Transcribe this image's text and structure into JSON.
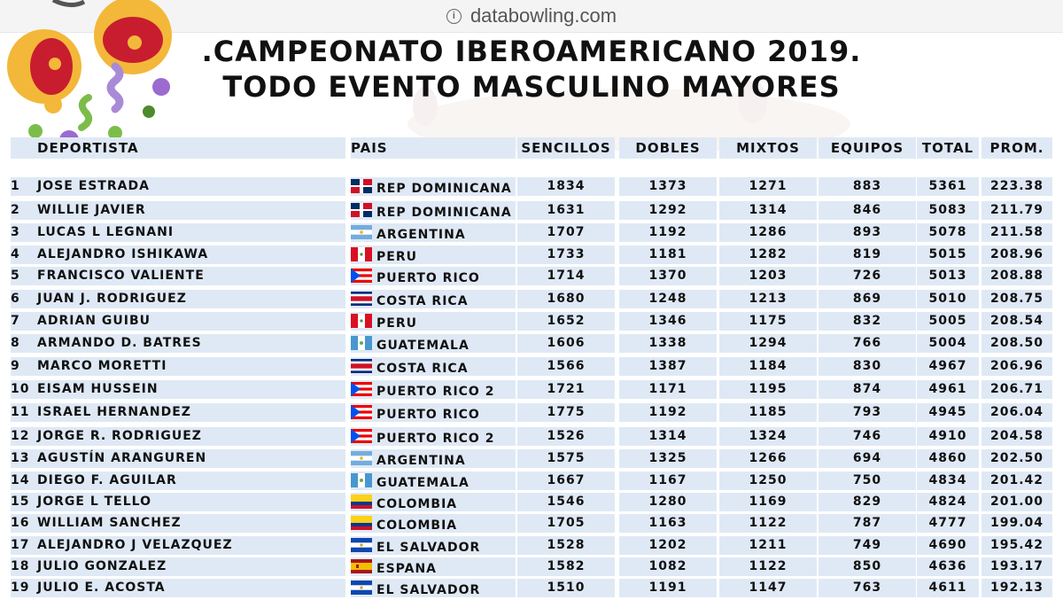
{
  "browser": {
    "url": "databowling.com"
  },
  "title": {
    "line1": ".CAMPEONATO IBEROAMERICANO 2019.",
    "line2": "TODO EVENTO MASCULINO MAYORES"
  },
  "table": {
    "headers": {
      "deportista": "DEPORTISTA",
      "pais": "PAIS",
      "sencillos": "SENCILLOS",
      "dobles": "DOBLES",
      "mixtos": "MIXTOS",
      "equipos": "EQUIPOS",
      "total": "TOTAL",
      "prom": "PROM."
    },
    "rows": [
      {
        "rank": "1",
        "name": "JOSE ESTRADA",
        "flag": "dom",
        "country": "REP DOMINICANA",
        "sencillos": "1834",
        "dobles": "1373",
        "mixtos": "1271",
        "equipos": "883",
        "total": "5361",
        "prom": "223.38"
      },
      {
        "rank": "2",
        "name": "WILLIE JAVIER",
        "flag": "dom",
        "country": "REP DOMINICANA",
        "sencillos": "1631",
        "dobles": "1292",
        "mixtos": "1314",
        "equipos": "846",
        "total": "5083",
        "prom": "211.79"
      },
      {
        "rank": "3",
        "name": "LUCAS L LEGNANI",
        "flag": "arg",
        "country": "ARGENTINA",
        "sencillos": "1707",
        "dobles": "1192",
        "mixtos": "1286",
        "equipos": "893",
        "total": "5078",
        "prom": "211.58"
      },
      {
        "rank": "4",
        "name": "ALEJANDRO ISHIKAWA",
        "flag": "per",
        "country": "PERU",
        "sencillos": "1733",
        "dobles": "1181",
        "mixtos": "1282",
        "equipos": "819",
        "total": "5015",
        "prom": "208.96"
      },
      {
        "rank": "5",
        "name": "FRANCISCO VALIENTE",
        "flag": "pri",
        "country": "PUERTO RICO",
        "sencillos": "1714",
        "dobles": "1370",
        "mixtos": "1203",
        "equipos": "726",
        "total": "5013",
        "prom": "208.88"
      },
      {
        "rank": "6",
        "name": "JUAN J. RODRIGUEZ",
        "flag": "cri",
        "country": "COSTA RICA",
        "sencillos": "1680",
        "dobles": "1248",
        "mixtos": "1213",
        "equipos": "869",
        "total": "5010",
        "prom": "208.75"
      },
      {
        "rank": "7",
        "name": "ADRIAN GUIBU",
        "flag": "per",
        "country": "PERU",
        "sencillos": "1652",
        "dobles": "1346",
        "mixtos": "1175",
        "equipos": "832",
        "total": "5005",
        "prom": "208.54"
      },
      {
        "rank": "8",
        "name": "ARMANDO D. BATRES",
        "flag": "gtm",
        "country": "GUATEMALA",
        "sencillos": "1606",
        "dobles": "1338",
        "mixtos": "1294",
        "equipos": "766",
        "total": "5004",
        "prom": "208.50"
      },
      {
        "rank": "9",
        "name": "MARCO MORETTI",
        "flag": "cri",
        "country": "COSTA RICA",
        "sencillos": "1566",
        "dobles": "1387",
        "mixtos": "1184",
        "equipos": "830",
        "total": "4967",
        "prom": "206.96"
      },
      {
        "rank": "10",
        "name": "EISAM HUSSEIN",
        "flag": "pri",
        "country": "PUERTO RICO 2",
        "sencillos": "1721",
        "dobles": "1171",
        "mixtos": "1195",
        "equipos": "874",
        "total": "4961",
        "prom": "206.71"
      },
      {
        "rank": "11",
        "name": "ISRAEL HERNANDEZ",
        "flag": "pri",
        "country": "PUERTO RICO",
        "sencillos": "1775",
        "dobles": "1192",
        "mixtos": "1185",
        "equipos": "793",
        "total": "4945",
        "prom": "206.04"
      },
      {
        "rank": "12",
        "name": "JORGE R. RODRIGUEZ",
        "flag": "pri",
        "country": "PUERTO RICO 2",
        "sencillos": "1526",
        "dobles": "1314",
        "mixtos": "1324",
        "equipos": "746",
        "total": "4910",
        "prom": "204.58"
      },
      {
        "rank": "13",
        "name": "AGUSTÍN ARANGUREN",
        "flag": "arg",
        "country": "ARGENTINA",
        "sencillos": "1575",
        "dobles": "1325",
        "mixtos": "1266",
        "equipos": "694",
        "total": "4860",
        "prom": "202.50"
      },
      {
        "rank": "14",
        "name": "DIEGO F. AGUILAR",
        "flag": "gtm",
        "country": "GUATEMALA",
        "sencillos": "1667",
        "dobles": "1167",
        "mixtos": "1250",
        "equipos": "750",
        "total": "4834",
        "prom": "201.42"
      },
      {
        "rank": "15",
        "name": "JORGE L TELLO",
        "flag": "col",
        "country": "COLOMBIA",
        "sencillos": "1546",
        "dobles": "1280",
        "mixtos": "1169",
        "equipos": "829",
        "total": "4824",
        "prom": "201.00"
      },
      {
        "rank": "16",
        "name": "WILLIAM SANCHEZ",
        "flag": "col",
        "country": "COLOMBIA",
        "sencillos": "1705",
        "dobles": "1163",
        "mixtos": "1122",
        "equipos": "787",
        "total": "4777",
        "prom": "199.04"
      },
      {
        "rank": "17",
        "name": "ALEJANDRO J VELAZQUEZ",
        "flag": "slv",
        "country": "EL SALVADOR",
        "sencillos": "1528",
        "dobles": "1202",
        "mixtos": "1211",
        "equipos": "749",
        "total": "4690",
        "prom": "195.42"
      },
      {
        "rank": "18",
        "name": "JULIO GONZALEZ",
        "flag": "esp",
        "country": "ESPANA",
        "sencillos": "1582",
        "dobles": "1082",
        "mixtos": "1122",
        "equipos": "850",
        "total": "4636",
        "prom": "193.17"
      },
      {
        "rank": "19",
        "name": "JULIO E. ACOSTA",
        "flag": "slv",
        "country": "EL SALVADOR",
        "sencillos": "1510",
        "dobles": "1191",
        "mixtos": "1147",
        "equipos": "763",
        "total": "4611",
        "prom": "192.13"
      }
    ]
  },
  "colors": {
    "row_band": "#dfe9f5",
    "text": "#111111"
  }
}
